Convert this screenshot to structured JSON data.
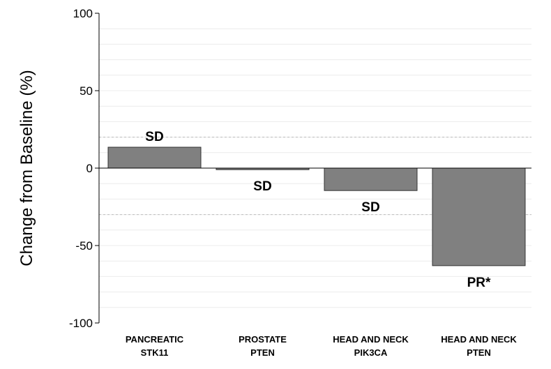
{
  "chart_data": {
    "type": "bar",
    "ylabel": "Change from Baseline (%)",
    "ylim": [
      -100,
      100
    ],
    "yticks": [
      100,
      50,
      0,
      -50,
      -100
    ],
    "categories": [
      [
        "PANCREATIC",
        "STK11"
      ],
      [
        "PROSTATE",
        "PTEN"
      ],
      [
        "HEAD AND NECK",
        "PIK3CA"
      ],
      [
        "HEAD AND NECK",
        "PTEN"
      ]
    ],
    "values": [
      13.5,
      -1,
      -14.5,
      -63
    ],
    "bar_labels": [
      "SD",
      "SD",
      "SD",
      "PR*"
    ],
    "reference_lines": [
      20,
      -30
    ],
    "minor_grid_step": 10,
    "grid": true,
    "bar_color": "#808080",
    "bar_outline": "#333333"
  }
}
